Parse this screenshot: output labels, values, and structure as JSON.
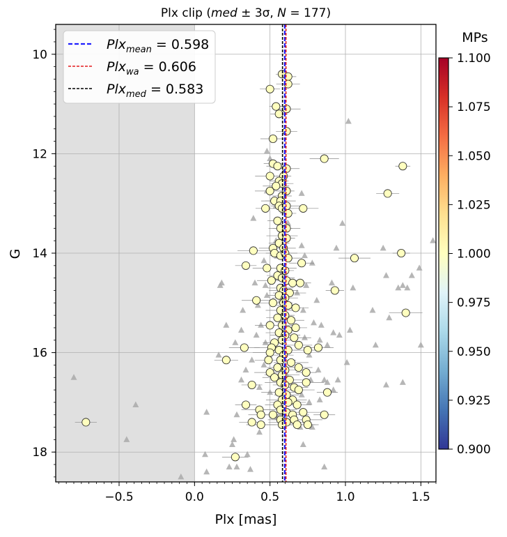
{
  "chart_data": {
    "type": "scatter",
    "title": "Plx clip (med ± 3σ, N = 177)",
    "title_parts": {
      "prefix": "Plx clip (",
      "med": "med",
      "pm": " ± 3σ, ",
      "n": "N",
      "neq": " = 177)"
    },
    "xlabel": "Plx [mas]",
    "ylabel": "G",
    "xlim": [
      -0.92,
      1.6
    ],
    "ylim": [
      18.6,
      9.4
    ],
    "y_inverted": true,
    "x_ticks": [
      -0.5,
      0.0,
      0.5,
      1.0,
      1.5
    ],
    "x_tick_labels": [
      "−0.5",
      "0.0",
      "0.5",
      "1.0",
      "1.5"
    ],
    "y_ticks": [
      10,
      12,
      14,
      16,
      18
    ],
    "y_tick_labels": [
      "10",
      "12",
      "14",
      "16",
      "18"
    ],
    "grid": true,
    "shaded_region": {
      "from": -0.92,
      "to": 0.0,
      "color": "#e0e0e0"
    },
    "vertical_lines": [
      {
        "name": "mean",
        "value": 0.598,
        "color": "#1f1fff",
        "label_sub": "mean",
        "label_val": " = 0.598"
      },
      {
        "name": "wa",
        "value": 0.606,
        "color": "#e41a1c",
        "label_sub": "wa",
        "label_val": " = 0.606"
      },
      {
        "name": "med",
        "value": 0.583,
        "color": "#000000",
        "label_sub": "med",
        "label_val": " = 0.583"
      }
    ],
    "legend_label_base": "Plx",
    "legend_position": "top-left",
    "colorbar": {
      "label": "MPs",
      "range": [
        0.9,
        1.1
      ],
      "ticks": [
        "1.100",
        "1.075",
        "1.050",
        "1.025",
        "1.000",
        "0.975",
        "0.950",
        "0.925",
        "0.900"
      ],
      "stops": [
        "#a50026",
        "#d73027",
        "#f46d43",
        "#fdae61",
        "#fee090",
        "#ffffbf",
        "#e0f3f8",
        "#abd9e9",
        "#74add1",
        "#4575b4",
        "#313695"
      ]
    },
    "members": [
      [
        0.58,
        10.4
      ],
      [
        0.62,
        10.45
      ],
      [
        0.5,
        10.7
      ],
      [
        0.62,
        10.6
      ],
      [
        0.61,
        11.1
      ],
      [
        0.54,
        11.05
      ],
      [
        0.56,
        11.2
      ],
      [
        0.61,
        11.55
      ],
      [
        0.52,
        11.7
      ],
      [
        0.86,
        12.1
      ],
      [
        1.38,
        12.25
      ],
      [
        0.52,
        12.2
      ],
      [
        0.55,
        12.25
      ],
      [
        0.61,
        12.3
      ],
      [
        0.5,
        12.45
      ],
      [
        0.59,
        12.45
      ],
      [
        0.56,
        12.55
      ],
      [
        0.58,
        12.6
      ],
      [
        0.54,
        12.65
      ],
      [
        0.5,
        12.75
      ],
      [
        0.61,
        12.75
      ],
      [
        0.58,
        12.85
      ],
      [
        1.28,
        12.8
      ],
      [
        0.53,
        12.95
      ],
      [
        0.57,
        12.95
      ],
      [
        0.56,
        13.05
      ],
      [
        0.47,
        13.1
      ],
      [
        0.58,
        13.1
      ],
      [
        0.61,
        13.05
      ],
      [
        0.72,
        13.1
      ],
      [
        0.62,
        13.2
      ],
      [
        0.55,
        13.35
      ],
      [
        0.57,
        13.5
      ],
      [
        0.61,
        13.5
      ],
      [
        0.58,
        13.65
      ],
      [
        0.61,
        13.7
      ],
      [
        0.56,
        13.8
      ],
      [
        0.59,
        13.9
      ],
      [
        0.52,
        13.9
      ],
      [
        0.39,
        13.95
      ],
      [
        0.53,
        14.0
      ],
      [
        0.57,
        14.05
      ],
      [
        0.6,
        14.0
      ],
      [
        0.62,
        14.1
      ],
      [
        1.06,
        14.1
      ],
      [
        1.37,
        14.0
      ],
      [
        0.34,
        14.25
      ],
      [
        0.71,
        14.2
      ],
      [
        0.48,
        14.3
      ],
      [
        0.57,
        14.3
      ],
      [
        0.6,
        14.35
      ],
      [
        0.55,
        14.45
      ],
      [
        0.58,
        14.5
      ],
      [
        0.51,
        14.55
      ],
      [
        0.61,
        14.55
      ],
      [
        0.65,
        14.6
      ],
      [
        0.7,
        14.6
      ],
      [
        0.57,
        14.7
      ],
      [
        0.59,
        14.75
      ],
      [
        0.63,
        14.8
      ],
      [
        0.93,
        14.75
      ],
      [
        0.56,
        14.85
      ],
      [
        0.6,
        14.9
      ],
      [
        0.41,
        14.95
      ],
      [
        0.52,
        15.0
      ],
      [
        0.59,
        15.0
      ],
      [
        0.62,
        15.05
      ],
      [
        0.67,
        15.1
      ],
      [
        0.57,
        15.15
      ],
      [
        1.4,
        15.2
      ],
      [
        0.6,
        15.25
      ],
      [
        0.55,
        15.3
      ],
      [
        0.64,
        15.35
      ],
      [
        0.5,
        15.45
      ],
      [
        0.58,
        15.45
      ],
      [
        0.62,
        15.55
      ],
      [
        0.67,
        15.5
      ],
      [
        0.56,
        15.6
      ],
      [
        0.6,
        15.65
      ],
      [
        0.66,
        15.7
      ],
      [
        0.58,
        15.75
      ],
      [
        0.53,
        15.8
      ],
      [
        0.69,
        15.85
      ],
      [
        0.33,
        15.9
      ],
      [
        0.51,
        15.9
      ],
      [
        0.56,
        15.95
      ],
      [
        0.62,
        15.95
      ],
      [
        0.75,
        15.95
      ],
      [
        0.82,
        15.9
      ],
      [
        0.5,
        16.0
      ],
      [
        0.59,
        16.05
      ],
      [
        0.21,
        16.15
      ],
      [
        0.49,
        16.15
      ],
      [
        0.57,
        16.15
      ],
      [
        0.64,
        16.2
      ],
      [
        0.55,
        16.3
      ],
      [
        0.6,
        16.35
      ],
      [
        0.69,
        16.3
      ],
      [
        0.5,
        16.4
      ],
      [
        0.58,
        16.45
      ],
      [
        0.74,
        16.4
      ],
      [
        0.53,
        16.5
      ],
      [
        0.63,
        16.55
      ],
      [
        0.57,
        16.6
      ],
      [
        0.74,
        16.6
      ],
      [
        0.38,
        16.65
      ],
      [
        0.6,
        16.65
      ],
      [
        0.66,
        16.7
      ],
      [
        0.69,
        16.75
      ],
      [
        0.56,
        16.8
      ],
      [
        0.88,
        16.8
      ],
      [
        0.61,
        16.85
      ],
      [
        0.65,
        16.95
      ],
      [
        0.58,
        16.95
      ],
      [
        0.62,
        17.0
      ],
      [
        0.34,
        17.05
      ],
      [
        0.55,
        17.05
      ],
      [
        0.68,
        17.05
      ],
      [
        0.57,
        17.15
      ],
      [
        0.43,
        17.15
      ],
      [
        0.61,
        17.2
      ],
      [
        0.44,
        17.25
      ],
      [
        0.52,
        17.25
      ],
      [
        0.65,
        17.25
      ],
      [
        0.72,
        17.2
      ],
      [
        0.86,
        17.25
      ],
      [
        0.57,
        17.35
      ],
      [
        0.66,
        17.35
      ],
      [
        0.74,
        17.35
      ],
      [
        0.61,
        17.4
      ],
      [
        -0.72,
        17.4
      ],
      [
        0.38,
        17.4
      ],
      [
        0.44,
        17.45
      ],
      [
        0.58,
        17.45
      ],
      [
        0.68,
        17.45
      ],
      [
        0.75,
        17.45
      ],
      [
        0.27,
        18.1
      ]
    ],
    "non_members": [
      [
        0.61,
        10.4
      ],
      [
        1.02,
        11.35
      ],
      [
        0.48,
        11.95
      ],
      [
        0.5,
        12.1
      ],
      [
        0.48,
        12.75
      ],
      [
        0.71,
        12.8
      ],
      [
        0.54,
        13.05
      ],
      [
        0.39,
        13.3
      ],
      [
        0.62,
        13.4
      ],
      [
        0.98,
        13.4
      ],
      [
        0.54,
        13.75
      ],
      [
        0.71,
        13.85
      ],
      [
        0.94,
        13.9
      ],
      [
        1.25,
        13.9
      ],
      [
        0.55,
        14.05
      ],
      [
        1.58,
        13.75
      ],
      [
        0.73,
        14.05
      ],
      [
        0.46,
        14.15
      ],
      [
        0.78,
        14.2
      ],
      [
        1.49,
        14.3
      ],
      [
        1.27,
        14.45
      ],
      [
        0.4,
        14.6
      ],
      [
        0.18,
        14.6
      ],
      [
        0.17,
        14.65
      ],
      [
        0.47,
        14.65
      ],
      [
        0.74,
        14.65
      ],
      [
        1.44,
        14.45
      ],
      [
        0.91,
        14.6
      ],
      [
        0.68,
        14.8
      ],
      [
        0.48,
        14.85
      ],
      [
        0.81,
        14.95
      ],
      [
        1.38,
        14.65
      ],
      [
        1.41,
        14.7
      ],
      [
        1.35,
        14.7
      ],
      [
        1.05,
        14.7
      ],
      [
        0.57,
        14.95
      ],
      [
        0.42,
        15.05
      ],
      [
        0.32,
        15.15
      ],
      [
        0.72,
        15.15
      ],
      [
        1.18,
        15.15
      ],
      [
        1.29,
        15.3
      ],
      [
        0.44,
        15.45
      ],
      [
        0.21,
        15.45
      ],
      [
        0.79,
        15.4
      ],
      [
        0.84,
        15.45
      ],
      [
        0.31,
        15.55
      ],
      [
        0.92,
        15.6
      ],
      [
        1.03,
        15.55
      ],
      [
        0.41,
        15.65
      ],
      [
        0.96,
        15.65
      ],
      [
        0.73,
        15.7
      ],
      [
        0.83,
        15.75
      ],
      [
        0.27,
        15.8
      ],
      [
        0.47,
        15.8
      ],
      [
        0.88,
        15.85
      ],
      [
        1.2,
        15.85
      ],
      [
        1.5,
        15.85
      ],
      [
        0.53,
        15.9
      ],
      [
        0.16,
        16.05
      ],
      [
        0.76,
        16.05
      ],
      [
        0.38,
        16.15
      ],
      [
        0.46,
        16.25
      ],
      [
        1.01,
        16.2
      ],
      [
        0.34,
        16.35
      ],
      [
        0.82,
        16.35
      ],
      [
        0.61,
        16.45
      ],
      [
        0.31,
        16.55
      ],
      [
        0.77,
        16.55
      ],
      [
        0.86,
        16.55
      ],
      [
        0.88,
        16.6
      ],
      [
        0.95,
        16.55
      ],
      [
        1.27,
        16.65
      ],
      [
        1.38,
        16.6
      ],
      [
        0.43,
        16.7
      ],
      [
        0.92,
        16.75
      ],
      [
        0.5,
        16.8
      ],
      [
        0.71,
        16.85
      ],
      [
        0.83,
        16.95
      ],
      [
        0.76,
        17.0
      ],
      [
        0.28,
        17.25
      ],
      [
        -0.39,
        17.05
      ],
      [
        -0.8,
        16.5
      ],
      [
        0.08,
        17.2
      ],
      [
        0.55,
        17.3
      ],
      [
        0.61,
        17.35
      ],
      [
        0.7,
        17.5
      ],
      [
        0.43,
        17.6
      ],
      [
        0.26,
        17.75
      ],
      [
        0.78,
        17.5
      ],
      [
        -0.45,
        17.75
      ],
      [
        0.25,
        17.85
      ],
      [
        0.72,
        17.85
      ],
      [
        0.07,
        18.05
      ],
      [
        0.35,
        18.05
      ],
      [
        0.23,
        18.3
      ],
      [
        0.28,
        18.3
      ],
      [
        0.37,
        18.35
      ],
      [
        0.08,
        18.4
      ],
      [
        -0.09,
        18.5
      ],
      [
        0.86,
        18.3
      ]
    ]
  }
}
